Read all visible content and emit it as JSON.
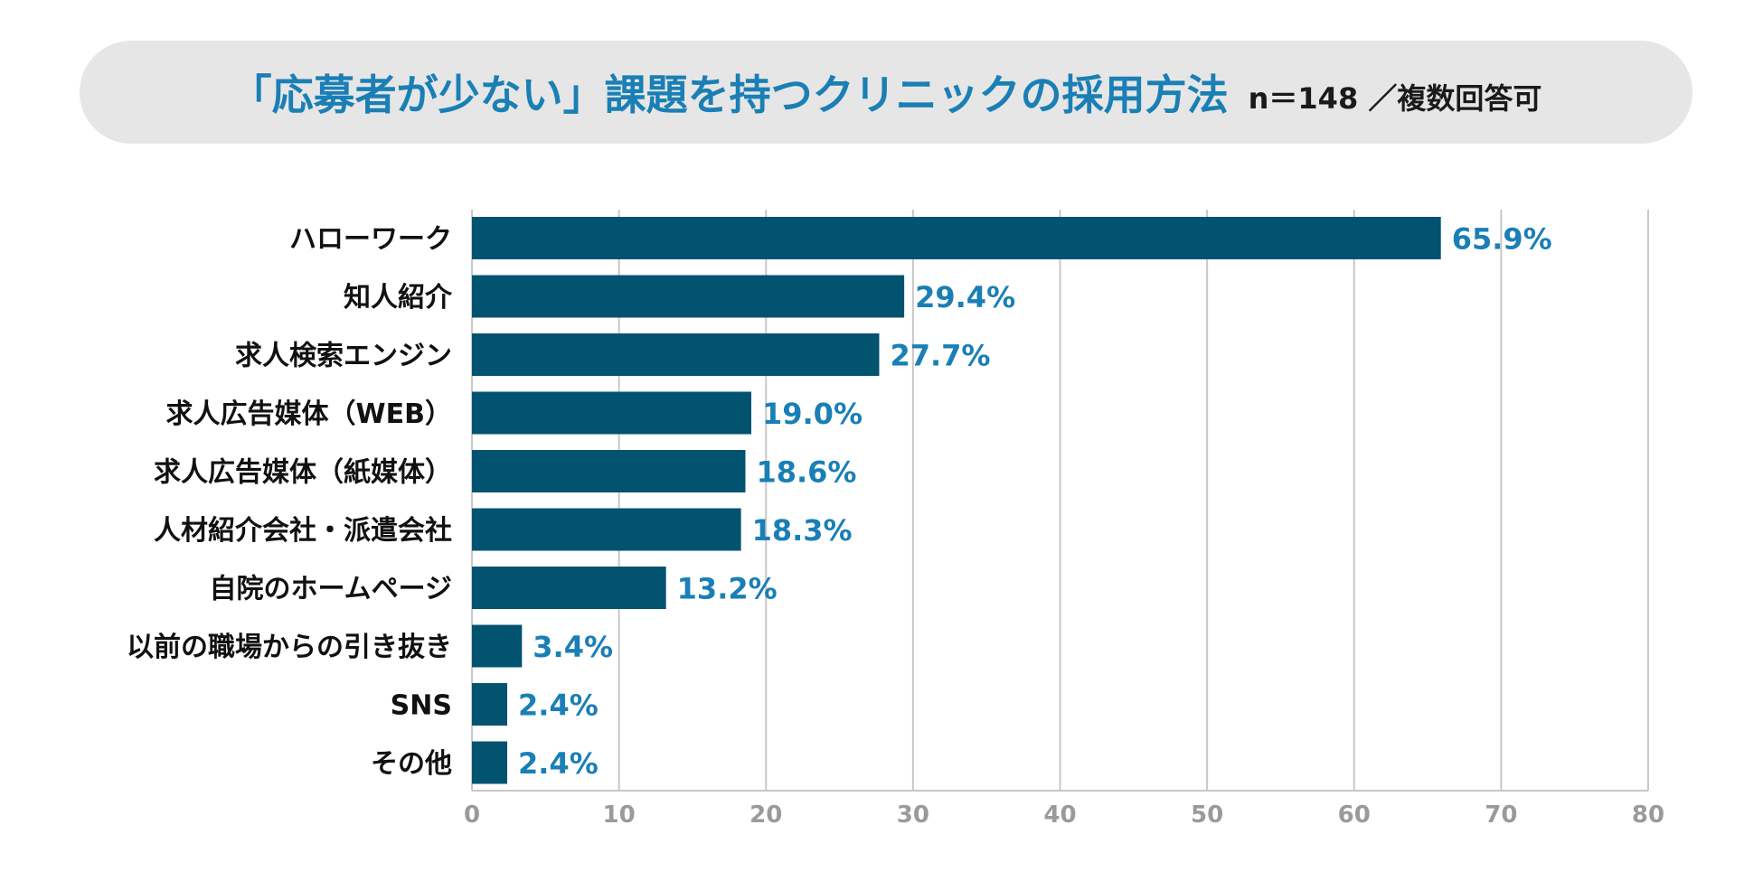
{
  "header": {
    "title": "「応募者が少ない」課題を持つクリニックの採用方法",
    "subtitle": "n＝148 ／複数回答可"
  },
  "colors": {
    "bar": "#02536f",
    "value_label": "#1a7fb5",
    "category_label": "#111111",
    "tick_label": "#9a9a9a",
    "grid": "#c8c8c8",
    "banner_bg": "#e6e6e6"
  },
  "chart_data": {
    "type": "bar",
    "orientation": "horizontal",
    "categories": [
      "ハローワーク",
      "知人紹介",
      "求人検索エンジン",
      "求人広告媒体（WEB）",
      "求人広告媒体（紙媒体）",
      "人材紹介会社・派遣会社",
      "自院のホームページ",
      "以前の職場からの引き抜き",
      "SNS",
      "その他"
    ],
    "values": [
      65.9,
      29.4,
      27.7,
      19.0,
      18.6,
      18.3,
      13.2,
      3.4,
      2.4,
      2.4
    ],
    "value_labels": [
      "65.9%",
      "29.4%",
      "27.7%",
      "19.0%",
      "18.6%",
      "18.3%",
      "13.2%",
      "3.4%",
      "2.4%",
      "2.4%"
    ],
    "xlim": [
      0,
      80
    ],
    "xticks": [
      0,
      10,
      20,
      30,
      40,
      50,
      60,
      70,
      80
    ],
    "grid": true,
    "legend": "none"
  }
}
